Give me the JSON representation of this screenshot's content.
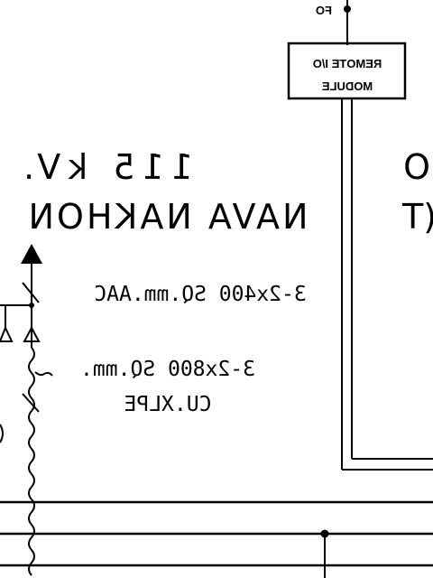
{
  "diagram": {
    "fo_label": "FO",
    "remote_module": {
      "line1": "REMOTE I/O",
      "line2": "MODULE"
    },
    "voltage_label": "115 kV.",
    "substation_name": "NAVA NAKHON",
    "right_partial_top": "O",
    "right_partial_bottom": "(T",
    "conductor_overhead": "3-2x400 SQ.mm.AAC",
    "cable_line1": "3-2x800 SQ.mm.",
    "cable_line2": "CU.XLPE",
    "left_partial_glyph": "o"
  }
}
